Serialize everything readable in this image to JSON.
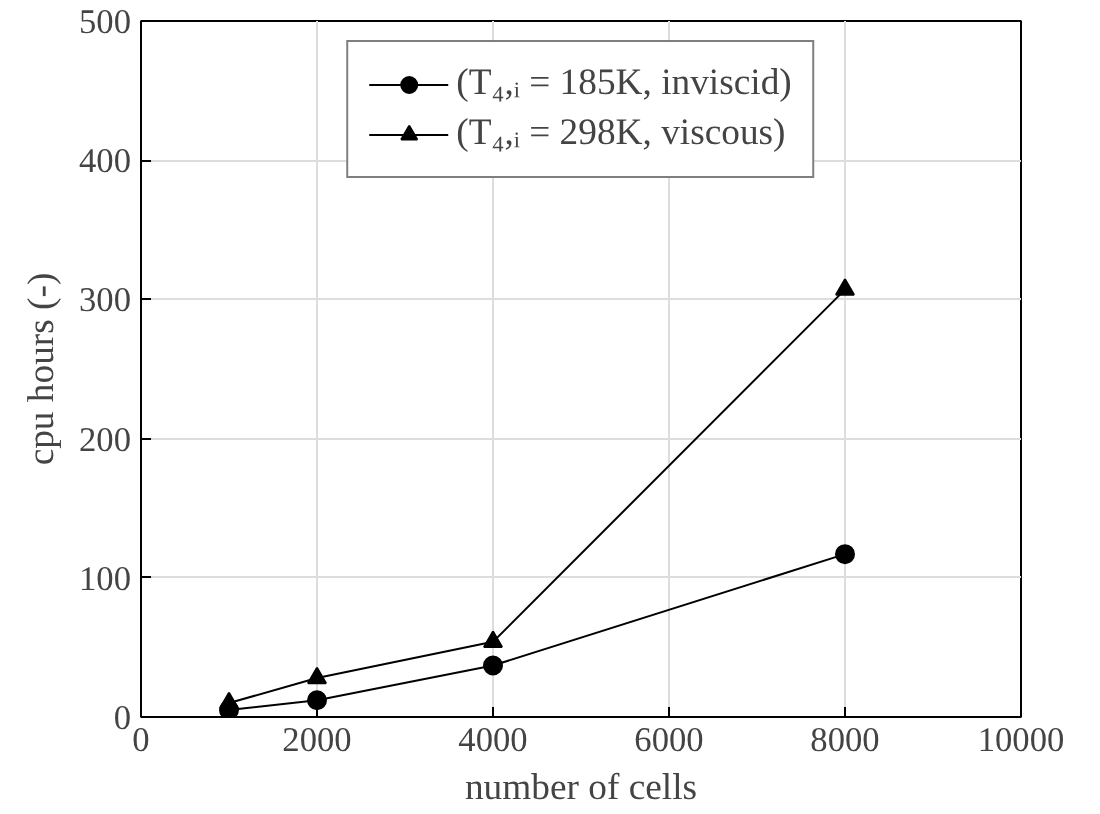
{
  "chart_data": {
    "type": "line",
    "xlabel": "number of cells",
    "ylabel": "cpu hours (-)",
    "x": [
      1000,
      2000,
      4000,
      8000
    ],
    "series": [
      {
        "name": "(T₄,ᵢ = 185K, inviscid)",
        "color": "#000000",
        "values": [
          5,
          12,
          37,
          117
        ],
        "marker": "circle"
      },
      {
        "name": "(T₄,ᵢ = 298K, viscous)",
        "color": "#000000",
        "values": [
          10,
          28,
          54,
          307
        ],
        "marker": "triangle"
      }
    ],
    "xlim": [
      0,
      10000
    ],
    "xticks": [
      0,
      2000,
      4000,
      6000,
      8000,
      10000
    ],
    "ylim": [
      0,
      500
    ],
    "yticks": [
      0,
      100,
      200,
      300,
      400,
      500
    ],
    "grid": true,
    "legend": "top",
    "line_style": "solid"
  }
}
